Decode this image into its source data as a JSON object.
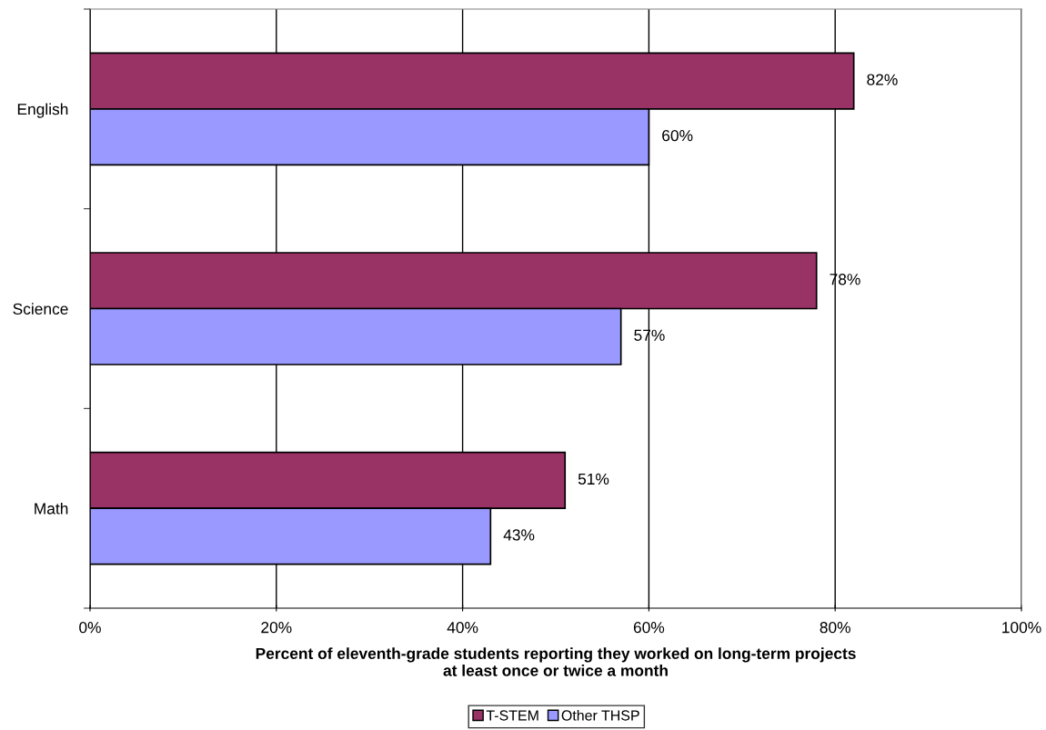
{
  "chart_data": {
    "type": "bar",
    "orientation": "horizontal",
    "categories": [
      "English",
      "Science",
      "Math"
    ],
    "series": [
      {
        "name": "T-STEM",
        "color": "#993366",
        "values": [
          82,
          78,
          51
        ],
        "value_labels": [
          "82%",
          "78%",
          "51%"
        ]
      },
      {
        "name": "Other THSP",
        "color": "#9999ff",
        "values": [
          60,
          57,
          43
        ],
        "value_labels": [
          "60%",
          "57%",
          "43%"
        ]
      }
    ],
    "xlabel": "Percent of eleventh-grade students reporting they worked on long-term projects\nat least once or twice a month",
    "xlim": [
      0,
      100
    ],
    "xticks": [
      {
        "value": 0,
        "label": "0%"
      },
      {
        "value": 20,
        "label": "20%"
      },
      {
        "value": 40,
        "label": "40%"
      },
      {
        "value": 60,
        "label": "60%"
      },
      {
        "value": 80,
        "label": "80%"
      },
      {
        "value": 100,
        "label": "100%"
      }
    ],
    "grid": "x",
    "legend": "bottom"
  }
}
